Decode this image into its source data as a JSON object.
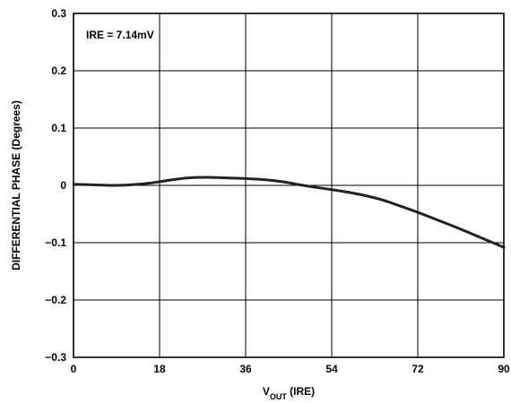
{
  "chart_data": {
    "type": "line",
    "xlabel_main": "V",
    "xlabel_sub": "OUT",
    "xlabel_suffix": " (IRE)",
    "ylabel": "DIFFERENTIAL PHASE (Degrees)",
    "annotation": "IRE = 7.14mV",
    "xlim": [
      0,
      90
    ],
    "ylim": [
      -0.3,
      0.3
    ],
    "xticks": [
      0,
      18,
      36,
      54,
      72,
      90
    ],
    "xtick_labels": [
      "0",
      "18",
      "36",
      "54",
      "72",
      "90"
    ],
    "yticks": [
      0.3,
      0.2,
      0.1,
      0,
      -0.1,
      -0.2,
      -0.3
    ],
    "ytick_labels": [
      "0.3",
      "0.2",
      "0.1",
      "0",
      "−0.1",
      "−0.2",
      "−0.3"
    ],
    "grid": true,
    "series": [
      {
        "color": "#222222",
        "x": [
          0,
          4,
          8,
          12,
          16,
          20,
          24,
          28,
          32,
          36,
          40,
          44,
          48,
          52,
          56,
          60,
          64,
          68,
          72,
          76,
          80,
          84,
          88,
          90
        ],
        "y": [
          0.002,
          0.001,
          0.0,
          0.001,
          0.004,
          0.009,
          0.013,
          0.014,
          0.013,
          0.012,
          0.01,
          0.006,
          0.0,
          -0.005,
          -0.01,
          -0.016,
          -0.024,
          -0.035,
          -0.047,
          -0.06,
          -0.073,
          -0.087,
          -0.101,
          -0.108
        ]
      }
    ]
  }
}
